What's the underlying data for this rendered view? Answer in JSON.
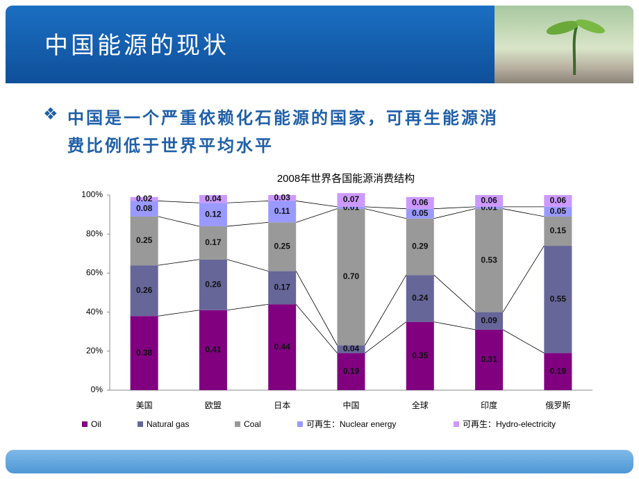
{
  "header": {
    "title": "中国能源的现状"
  },
  "bullet": {
    "lines": [
      "中国是一个严重依赖化石能源的国家，可再生能源消",
      "费比例低于世界平均水平"
    ]
  },
  "chart_data": {
    "type": "bar",
    "stacked": true,
    "title": "2008年世界各国能源消费结构",
    "categories": [
      "美国",
      "欧盟",
      "日本",
      "中国",
      "全球",
      "印度",
      "俄罗斯"
    ],
    "series": [
      {
        "name": "Oil",
        "color": "#800080",
        "values": [
          0.38,
          0.41,
          0.44,
          0.19,
          0.35,
          0.31,
          0.19
        ]
      },
      {
        "name": "Natural gas",
        "color": "#666699",
        "values": [
          0.26,
          0.26,
          0.17,
          0.04,
          0.24,
          0.09,
          0.55
        ]
      },
      {
        "name": "Coal",
        "color": "#999999",
        "values": [
          0.25,
          0.17,
          0.25,
          0.7,
          0.29,
          0.53,
          0.15
        ],
        "value_labels": [
          "0.25",
          "0.17",
          "0.25",
          "0.70",
          "0.29",
          "0.53",
          "0.15"
        ]
      },
      {
        "name": "可再生：Nuclear energy",
        "color": "#9999ff",
        "values": [
          0.08,
          0.12,
          0.11,
          0.01,
          0.05,
          0.01,
          0.05
        ]
      },
      {
        "name": "可再生：Hydro-electricity",
        "color": "#cc99ff",
        "values": [
          0.02,
          0.04,
          0.03,
          0.07,
          0.06,
          0.06,
          0.06
        ]
      }
    ],
    "ylim": [
      0,
      1
    ],
    "yticks": [
      {
        "value": 0,
        "label": "0%"
      },
      {
        "value": 0.2,
        "label": "20%"
      },
      {
        "value": 0.4,
        "label": "40%"
      },
      {
        "value": 0.6,
        "label": "60%"
      },
      {
        "value": 0.8,
        "label": "80%"
      },
      {
        "value": 1,
        "label": "100%"
      }
    ],
    "series_lines": true,
    "grid": false
  }
}
